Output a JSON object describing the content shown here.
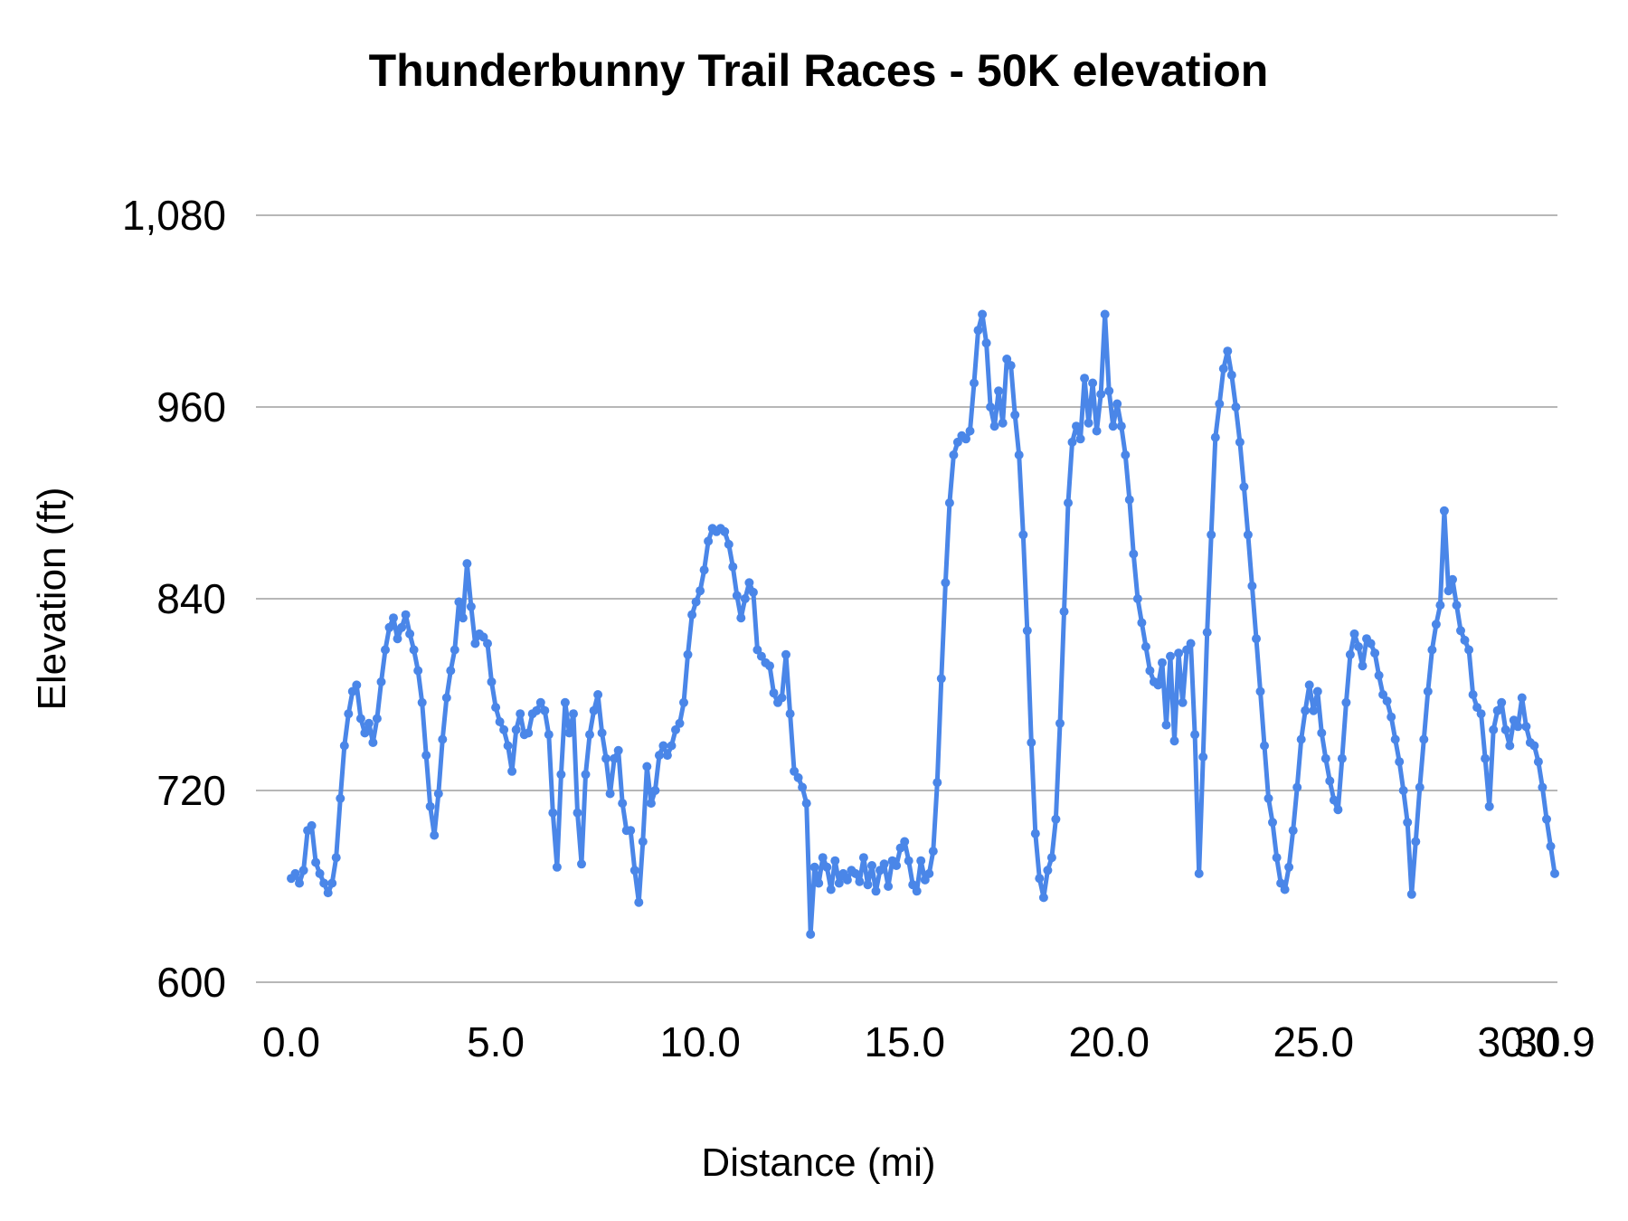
{
  "title": "Thunderbunny Trail Races - 50K elevation",
  "chart_data": {
    "type": "line",
    "title": "Thunderbunny Trail Races - 50K elevation",
    "xlabel": "Distance (mi)",
    "ylabel": "Elevation (ft)",
    "xlim": [
      0,
      30.9
    ],
    "ylim": [
      600,
      1080
    ],
    "grid": "horizontal",
    "legend": "none",
    "line_color": "#4a86e8",
    "marker_color": "#4a86e8",
    "grid_color": "#b7b7b7",
    "x_ticks": [
      {
        "label": "0.0",
        "value": 0
      },
      {
        "label": "5.0",
        "value": 5
      },
      {
        "label": "10.0",
        "value": 10
      },
      {
        "label": "15.0",
        "value": 15
      },
      {
        "label": "20.0",
        "value": 20
      },
      {
        "label": "25.0",
        "value": 25
      },
      {
        "label": "30.0",
        "value": 30
      },
      {
        "label": "30.9",
        "value": 30.9
      }
    ],
    "y_ticks": [
      {
        "label": "600",
        "value": 600
      },
      {
        "label": "720",
        "value": 720
      },
      {
        "label": "840",
        "value": 840
      },
      {
        "label": "960",
        "value": 960
      },
      {
        "label": "1,080",
        "value": 1080
      }
    ],
    "series": [
      {
        "name": "elevation",
        "x_start": 0,
        "x_step": 0.1,
        "x_end": 30.9,
        "values": [
          665,
          668,
          662,
          670,
          695,
          698,
          675,
          668,
          662,
          656,
          662,
          678,
          715,
          748,
          768,
          782,
          786,
          765,
          756,
          762,
          750,
          765,
          788,
          808,
          822,
          828,
          815,
          822,
          830,
          818,
          808,
          795,
          775,
          742,
          710,
          692,
          718,
          752,
          778,
          795,
          808,
          838,
          828,
          862,
          835,
          812,
          818,
          816,
          812,
          788,
          772,
          763,
          758,
          748,
          732,
          758,
          768,
          755,
          756,
          768,
          770,
          775,
          770,
          755,
          706,
          672,
          730,
          775,
          756,
          768,
          706,
          674,
          730,
          755,
          770,
          780,
          756,
          740,
          718,
          740,
          745,
          712,
          695,
          695,
          670,
          650,
          688,
          735,
          712,
          720,
          742,
          748,
          742,
          748,
          758,
          762,
          775,
          805,
          830,
          838,
          845,
          858,
          876,
          884,
          882,
          884,
          882,
          874,
          860,
          842,
          828,
          840,
          850,
          844,
          808,
          804,
          800,
          798,
          781,
          775,
          778,
          805,
          768,
          732,
          728,
          722,
          712,
          630,
          672,
          662,
          678,
          672,
          658,
          676,
          662,
          668,
          664,
          670,
          668,
          663,
          678,
          661,
          673,
          657,
          670,
          674,
          660,
          676,
          673,
          684,
          688,
          676,
          661,
          657,
          676,
          664,
          668,
          682,
          725,
          790,
          850,
          900,
          930,
          938,
          942,
          940,
          945,
          975,
          1008,
          1018,
          1000,
          960,
          948,
          970,
          950,
          990,
          986,
          955,
          930,
          880,
          820,
          750,
          693,
          665,
          653,
          670,
          678,
          702,
          762,
          832,
          900,
          938,
          948,
          940,
          978,
          950,
          975,
          945,
          968,
          1018,
          970,
          948,
          962,
          948,
          930,
          902,
          868,
          840,
          825,
          810,
          795,
          788,
          786,
          800,
          761,
          804,
          751,
          806,
          775,
          808,
          812,
          755,
          668,
          741,
          819,
          880,
          941,
          962,
          984,
          995,
          980,
          960,
          938,
          910,
          880,
          848,
          815,
          782,
          748,
          715,
          700,
          678,
          662,
          658,
          672,
          695,
          722,
          752,
          770,
          786,
          770,
          782,
          756,
          740,
          726,
          714,
          708,
          740,
          775,
          805,
          818,
          810,
          798,
          815,
          812,
          806,
          792,
          780,
          776,
          766,
          752,
          738,
          720,
          700,
          655,
          688,
          722,
          752,
          782,
          808,
          824,
          836,
          895,
          845,
          852,
          836,
          820,
          814,
          808,
          780,
          772,
          768,
          740,
          710,
          758,
          770,
          775,
          758,
          748,
          764,
          760,
          778,
          760,
          750,
          748,
          738,
          722,
          702,
          685,
          668
        ]
      }
    ]
  }
}
